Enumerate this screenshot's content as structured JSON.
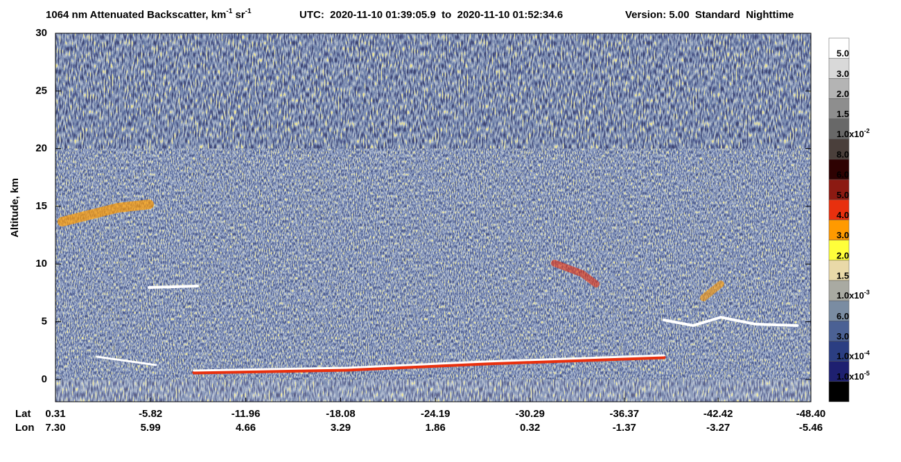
{
  "chart_data": {
    "type": "heatmap",
    "title": [
      "1064 nm Attenuated Backscatter, km",
      "-1",
      " sr",
      "-1"
    ],
    "utc": "UTC:  2020-11-10 01:39:05.9  to  2020-11-10 01:52:34.6",
    "version": "Version: 5.00  Standard  Nighttime",
    "ylabel": "Altitude, km",
    "ylim": [
      -1.93,
      30
    ],
    "yticks": [
      0,
      5,
      10,
      15,
      20,
      25,
      30
    ],
    "xlim": [
      0.31,
      -48.4
    ],
    "x_row_labels": [
      "Lat",
      "Lon"
    ],
    "xticks": [
      0.31,
      -5.82,
      -11.96,
      -18.08,
      -24.19,
      -30.29,
      -36.37,
      -42.42,
      {
        "value": -48.4,
        "label": "-48.40"
      }
    ],
    "lon_ticks": [
      {
        "value": 7.3,
        "label": "7.30"
      },
      5.99,
      4.66,
      3.29,
      1.86,
      0.32,
      -1.37,
      -3.27,
      -5.46
    ],
    "colorbar": {
      "colors": [
        "#ffffff",
        "#d9d9d9",
        "#b4b4b4",
        "#8e8e8e",
        "#686868",
        "#4a3f3b",
        "#2e0202",
        "#8c1a12",
        "#e8300e",
        "#ff9a00",
        "#ffff3a",
        "#e9d9a8",
        "#a9aaa2",
        "#7a8ca2",
        "#4b6194",
        "#2b3e82",
        "#1e2070",
        "#000000"
      ],
      "labels": [
        "5.0",
        "3.0",
        "2.0",
        "1.5",
        {
          "text": "1.0x10",
          "sup": "-2"
        },
        "8.0",
        "6.0",
        "5.0",
        "4.0",
        "3.0",
        "2.0",
        "1.5",
        {
          "text": "1.0x10",
          "sup": "-3"
        },
        "6.0",
        "3.0",
        {
          "text": "1.0x10",
          "sup": "-4"
        },
        {
          "text": "1.0x10",
          "sup": "-5"
        }
      ]
    }
  }
}
